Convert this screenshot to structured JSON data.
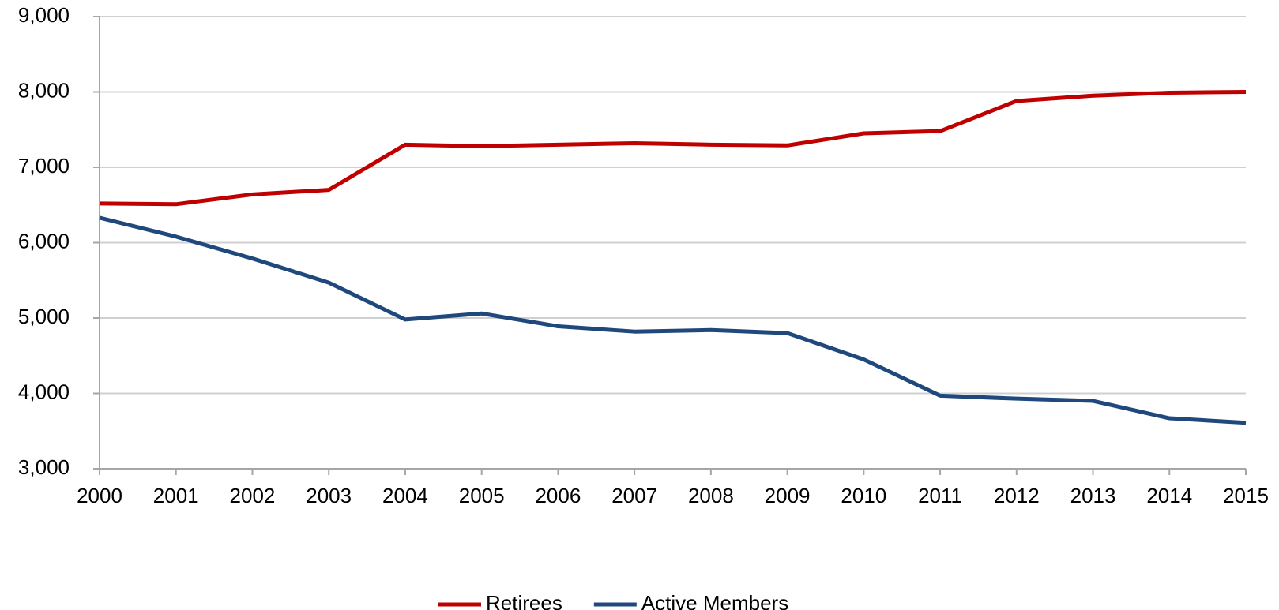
{
  "chart_data": {
    "type": "line",
    "x": [
      2000,
      2001,
      2002,
      2003,
      2004,
      2005,
      2006,
      2007,
      2008,
      2009,
      2010,
      2011,
      2012,
      2013,
      2014,
      2015
    ],
    "series": [
      {
        "name": "Retirees",
        "color": "#c00000",
        "values": [
          6520,
          6510,
          6640,
          6700,
          7300,
          7280,
          7300,
          7320,
          7300,
          7290,
          7450,
          7480,
          7880,
          7950,
          7990,
          8000
        ]
      },
      {
        "name": "Active Members",
        "color": "#1f497d",
        "values": [
          6330,
          6080,
          5790,
          5470,
          4980,
          5060,
          4890,
          4820,
          4840,
          4800,
          4450,
          3970,
          3930,
          3900,
          3670,
          3610
        ]
      }
    ],
    "xlim": [
      2000,
      2015
    ],
    "xticks": [
      2000,
      2001,
      2002,
      2003,
      2004,
      2005,
      2006,
      2007,
      2008,
      2009,
      2010,
      2011,
      2012,
      2013,
      2014,
      2015
    ],
    "ylim": [
      3000,
      9000
    ],
    "yticks": [
      {
        "value": 3000,
        "label": "3,000"
      },
      {
        "value": 4000,
        "label": "4,000"
      },
      {
        "value": 5000,
        "label": "5,000"
      },
      {
        "value": 6000,
        "label": "6,000"
      },
      {
        "value": 7000,
        "label": "7,000"
      },
      {
        "value": 8000,
        "label": "8,000"
      },
      {
        "value": 9000,
        "label": "9,000"
      }
    ],
    "grid": true,
    "legend": "bottom"
  }
}
